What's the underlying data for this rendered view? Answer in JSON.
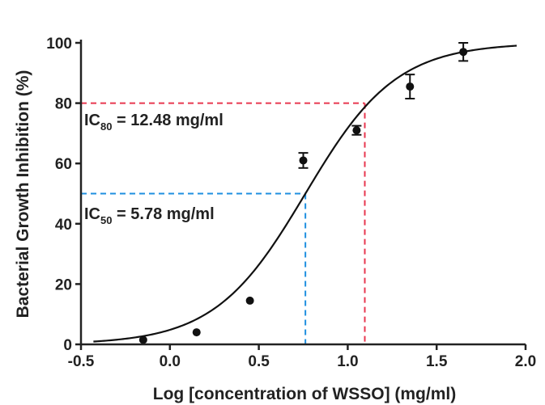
{
  "chart_data": {
    "type": "scatter",
    "xlabel": "Log [concentration of WSSO] (mg/ml)",
    "ylabel": "Bacterial Growth Inhibition (%)",
    "xlim": [
      -0.5,
      2.0
    ],
    "ylim": [
      0,
      100
    ],
    "x_ticks": [
      "-0.5",
      "0.0",
      "0.5",
      "1.0",
      "1.5",
      "2.0"
    ],
    "y_ticks": [
      "0",
      "20",
      "40",
      "60",
      "80",
      "100"
    ],
    "x_tick_values": [
      -0.5,
      0.0,
      0.5,
      1.0,
      1.5,
      2.0
    ],
    "y_tick_values": [
      0,
      20,
      40,
      60,
      80,
      100
    ],
    "grid": false,
    "series": [
      {
        "points": [
          {
            "x": -0.15,
            "y": 1.5,
            "err": 0.5
          },
          {
            "x": 0.15,
            "y": 4,
            "err": 0.5
          },
          {
            "x": 0.45,
            "y": 14.5,
            "err": 0.5
          },
          {
            "x": 0.75,
            "y": 61,
            "err": 2.5
          },
          {
            "x": 1.05,
            "y": 71,
            "err": 1.5
          },
          {
            "x": 1.35,
            "y": 85.5,
            "err": 4
          },
          {
            "x": 1.65,
            "y": 97,
            "err": 3
          }
        ]
      }
    ],
    "fit_curve": {
      "model": "sigmoidal dose-response",
      "bottom": 0,
      "top": 100,
      "log_ic50": 0.762,
      "hill_slope": 1.7,
      "color": "#111111"
    },
    "annotations": [
      {
        "prefix": "IC",
        "subscript": "80",
        "text": " = 12.48 mg/ml",
        "x": 1.096,
        "y": 80,
        "color": "#e8374f"
      },
      {
        "prefix": "IC",
        "subscript": "50",
        "text": " = 5.78 mg/ml",
        "x": 0.762,
        "y": 50,
        "color": "#1f8fe0"
      }
    ]
  }
}
